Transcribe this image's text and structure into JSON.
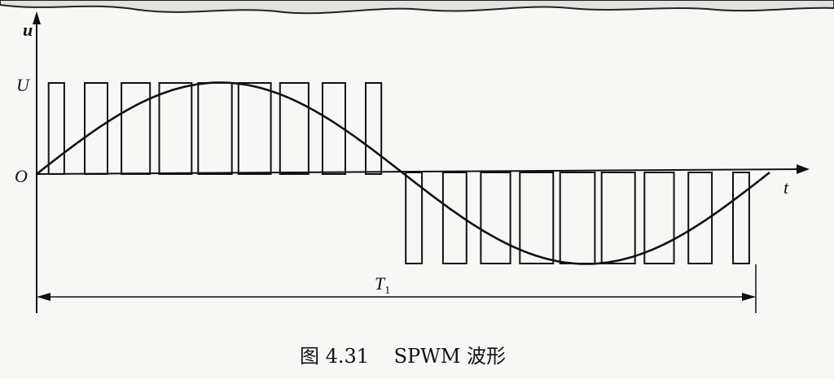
{
  "figure": {
    "caption": "图 4.31    SPWM 波形",
    "y_axis_label": "u",
    "x_axis_label": "t",
    "origin_label": "O",
    "amplitude_label": "U",
    "period_label_base": "T",
    "period_label_sub": "1"
  },
  "waveform": {
    "type": "SPWM",
    "positive_pulses": 9,
    "negative_pulses": 9
  },
  "colors": {
    "ink": "#111111",
    "paper": "#f7f7f5"
  }
}
